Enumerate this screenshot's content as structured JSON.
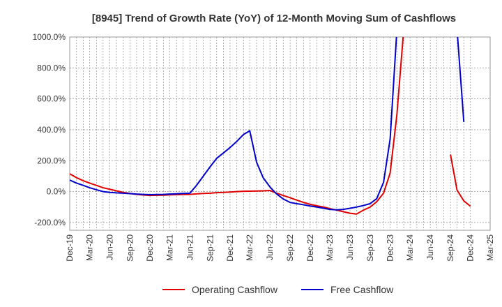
{
  "chart_data": {
    "type": "line",
    "title": "[8945]  Trend of Growth Rate (YoY) of 12-Month Moving Sum of Cashflows",
    "x": [
      "Dec-19",
      "Jan-20",
      "Feb-20",
      "Mar-20",
      "Apr-20",
      "May-20",
      "Jun-20",
      "Jul-20",
      "Aug-20",
      "Sep-20",
      "Oct-20",
      "Nov-20",
      "Dec-20",
      "Jan-21",
      "Feb-21",
      "Mar-21",
      "Apr-21",
      "May-21",
      "Jun-21",
      "Jul-21",
      "Aug-21",
      "Sep-21",
      "Oct-21",
      "Nov-21",
      "Dec-21",
      "Jan-22",
      "Feb-22",
      "Mar-22",
      "Apr-22",
      "May-22",
      "Jun-22",
      "Jul-22",
      "Aug-22",
      "Sep-22",
      "Oct-22",
      "Nov-22",
      "Dec-22",
      "Jan-23",
      "Feb-23",
      "Mar-23",
      "Apr-23",
      "May-23",
      "Jun-23",
      "Jul-23",
      "Aug-23",
      "Sep-23",
      "Oct-23",
      "Nov-23",
      "Dec-23",
      "Jan-24",
      "Feb-24",
      "Mar-24",
      "Apr-24",
      "May-24",
      "Jun-24",
      "Jul-24",
      "Aug-24",
      "Sep-24",
      "Oct-24",
      "Nov-24",
      "Dec-24"
    ],
    "x_tick_labels": [
      "Dec-19",
      "Mar-20",
      "Jun-20",
      "Sep-20",
      "Dec-20",
      "Mar-21",
      "Jun-21",
      "Sep-21",
      "Dec-21",
      "Mar-22",
      "Jun-22",
      "Sep-22",
      "Dec-22",
      "Mar-23",
      "Jun-23",
      "Sep-23",
      "Dec-23",
      "Mar-24",
      "Jun-24",
      "Sep-24",
      "Dec-24",
      "Mar-25"
    ],
    "y_tick_labels": [
      "1000.0%",
      "800.0%",
      "600.0%",
      "400.0%",
      "200.0%",
      "0.0%",
      "-200.0%"
    ],
    "y_ticks": [
      1000,
      800,
      600,
      400,
      200,
      0,
      -200
    ],
    "ylim": [
      -250,
      1000
    ],
    "xlabel": "",
    "ylabel": "",
    "grid": true,
    "legend_position": "bottom",
    "series": [
      {
        "name": "Operating Cashflow",
        "color": "#e00000",
        "values": [
          115,
          90,
          70,
          55,
          40,
          25,
          15,
          5,
          -5,
          -12,
          -18,
          -22,
          -25,
          -24,
          -23,
          -21,
          -20,
          -19,
          -18,
          -15,
          -12,
          -10,
          -7,
          -5,
          -3,
          0,
          2,
          3,
          4,
          5,
          7,
          -10,
          -25,
          -40,
          -55,
          -70,
          -82,
          -92,
          -100,
          -110,
          -120,
          -130,
          -140,
          -145,
          -120,
          -100,
          -65,
          -10,
          120,
          500,
          1050,
          null,
          null,
          null,
          null,
          null,
          null,
          240,
          10,
          -60,
          -95
        ]
      },
      {
        "name": "Free Cashflow",
        "color": "#0000cc",
        "values": [
          75,
          55,
          40,
          25,
          12,
          0,
          -5,
          -8,
          -10,
          -13,
          -16,
          -18,
          -20,
          -19,
          -18,
          -16,
          -14,
          -12,
          -10,
          40,
          100,
          160,
          215,
          250,
          285,
          325,
          370,
          393,
          190,
          90,
          30,
          -15,
          -48,
          -70,
          -78,
          -85,
          -93,
          -100,
          -108,
          -115,
          -118,
          -115,
          -108,
          -100,
          -90,
          -78,
          -45,
          60,
          340,
          1050,
          null,
          null,
          null,
          null,
          null,
          null,
          null,
          null,
          1050,
          450,
          null
        ]
      }
    ]
  }
}
